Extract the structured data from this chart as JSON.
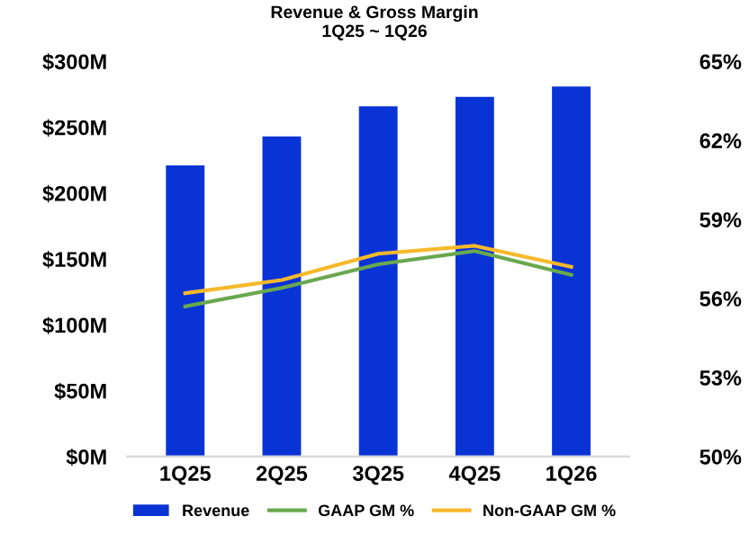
{
  "chart_data": {
    "type": "bar",
    "title": "Revenue & Gross Margin\n1Q25 ~ 1Q26",
    "categories": [
      "1Q25",
      "2Q25",
      "3Q25",
      "4Q25",
      "1Q26"
    ],
    "series": [
      {
        "name": "Revenue",
        "color": "#0a33d6",
        "values": [
          221,
          243,
          266,
          273,
          281
        ]
      },
      {
        "name": "GAAP GM %",
        "type": "line",
        "axis": "y2",
        "color": "#6aa84f",
        "values": [
          55.7,
          56.4,
          57.3,
          57.8,
          56.9
        ]
      },
      {
        "name": "Non-GAAP GM %",
        "type": "line",
        "axis": "y2",
        "color": "#f6b92b",
        "values": [
          56.2,
          56.7,
          57.7,
          58.0,
          57.2
        ]
      }
    ],
    "ylim": [
      0,
      300
    ],
    "yticks": [
      {
        "value": 0,
        "label": "$0M"
      },
      {
        "value": 50,
        "label": "$50M"
      },
      {
        "value": 100,
        "label": "$100M"
      },
      {
        "value": 150,
        "label": "$150M"
      },
      {
        "value": 200,
        "label": "$200M"
      },
      {
        "value": 250,
        "label": "$250M"
      },
      {
        "value": 300,
        "label": "$300M"
      }
    ],
    "y2lim": [
      50,
      65
    ],
    "y2ticks": [
      {
        "value": 50,
        "label": "50%"
      },
      {
        "value": 53,
        "label": "53%"
      },
      {
        "value": 56,
        "label": "56%"
      },
      {
        "value": 59,
        "label": "59%"
      },
      {
        "value": 62,
        "label": "62%"
      },
      {
        "value": 65,
        "label": "65%"
      }
    ],
    "grid": false,
    "legend": "bottom"
  }
}
